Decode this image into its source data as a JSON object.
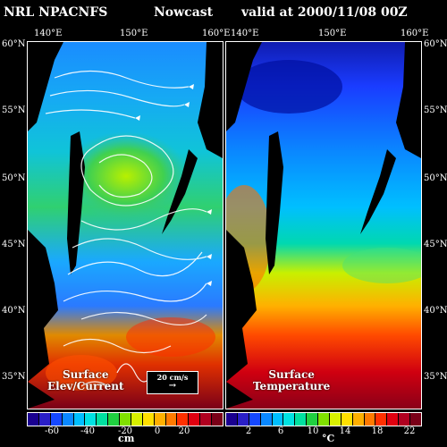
{
  "header": {
    "model": "NRL NPACNFS",
    "mode": "Nowcast",
    "valid": "valid at 2000/11/08 00Z"
  },
  "axes": {
    "lon_left": [
      "140°E",
      "150°E",
      "160°E"
    ],
    "lon_right": [
      "140°E",
      "150°E",
      "160°E"
    ],
    "lat": [
      "60°N",
      "55°N",
      "50°N",
      "45°N",
      "40°N",
      "35°N"
    ]
  },
  "left_panel": {
    "label_line1": "Surface",
    "label_line2": "Elev/Current",
    "scale_label": "20 cm/s"
  },
  "right_panel": {
    "label_line1": "Surface",
    "label_line2": "Temperature"
  },
  "colorbar_left": {
    "ticks": [
      "-60",
      "-40",
      "-20",
      "0",
      "20"
    ],
    "unit": "cm",
    "colors": [
      "#1a0090",
      "#2a1fc8",
      "#1548ff",
      "#0a88ff",
      "#00bfff",
      "#00e2e2",
      "#00e0a0",
      "#20d040",
      "#80e000",
      "#d8f000",
      "#ffe000",
      "#ffb000",
      "#ff7a00",
      "#ff3000",
      "#e00010",
      "#b00020",
      "#7a0018"
    ]
  },
  "colorbar_right": {
    "ticks": [
      "2",
      "6",
      "10",
      "14",
      "18",
      "22"
    ],
    "unit": "°C",
    "colors": [
      "#1a0090",
      "#2a1fc8",
      "#1548ff",
      "#0a88ff",
      "#00bfff",
      "#00e2e2",
      "#00e0a0",
      "#20d040",
      "#80e000",
      "#d8f000",
      "#ffe000",
      "#ffb000",
      "#ff7a00",
      "#ff3000",
      "#e00010",
      "#b00020",
      "#7a0018"
    ]
  }
}
